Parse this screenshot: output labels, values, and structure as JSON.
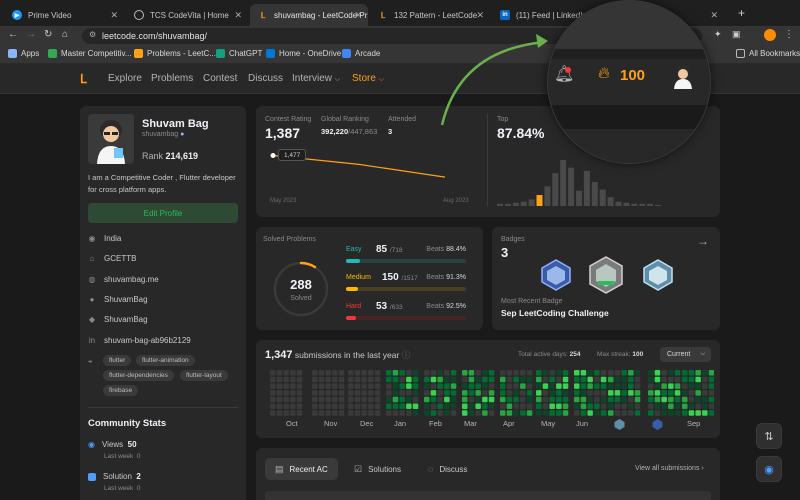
{
  "browser": {
    "tabs": [
      {
        "title": "Prime Video",
        "fav_color": "#1a98ff",
        "fav_glyph": "▶"
      },
      {
        "title": "TCS CodeVita | Home",
        "fav_color": "#ffffff",
        "fav_glyph": ""
      },
      {
        "title": "shuvambag - LeetCode Pr",
        "fav_color": "#ffa116",
        "fav_glyph": "L",
        "active": true
      },
      {
        "title": "132 Pattern - LeetCode",
        "fav_color": "#ffa116",
        "fav_glyph": "L"
      },
      {
        "title": "(11) Feed | LinkedIn",
        "fav_color": "#0a66c2",
        "fav_glyph": "in"
      }
    ],
    "url": "leetcode.com/shuvambag/",
    "bookmarks": [
      {
        "label": "Apps",
        "color": "#8ab4f8"
      },
      {
        "label": "Master Competitiv...",
        "color": "#34a853"
      },
      {
        "label": "Problems - LeetC...",
        "color": "#ffa116"
      },
      {
        "label": "ChatGPT",
        "color": "#10a37f"
      },
      {
        "label": "Home - OneDrive",
        "color": "#0078d4"
      },
      {
        "label": "Arcade",
        "color": "#4285f4"
      }
    ],
    "all_bookmarks": "All Bookmarks"
  },
  "nav": {
    "items": [
      "Explore",
      "Problems",
      "Contest",
      "Discuss",
      "Interview",
      "Store"
    ],
    "streak": "100"
  },
  "profile": {
    "name": "Shuvam Bag",
    "username": "shuvambag",
    "rank_label": "Rank",
    "rank": "214,619",
    "bio": "I am a Competitive Coder , Flutter developer for cross platform apps.",
    "edit_label": "Edit Profile",
    "location": "India",
    "school": "GCETTB",
    "website": "shuvambag.me",
    "github": "ShuvamBag",
    "twitter": "ShuvamBag",
    "linkedin": "shuvam-bag-ab96b2129",
    "skills": [
      "flutter",
      "flutter-animation",
      "flutter-dependencies",
      "flutter-layout",
      "firebase"
    ],
    "community_title": "Community Stats",
    "views_label": "Views",
    "views": "50",
    "views_sub": "Last week",
    "views_sub_val": "0",
    "solution_label": "Solution",
    "solution": "2",
    "solution_sub": "Last week",
    "solution_sub_val": "0"
  },
  "contest": {
    "rating_label": "Contest Rating",
    "rating": "1,387",
    "global_label": "Global Ranking",
    "global_rank": "392,220",
    "global_total": "/447,863",
    "attended_label": "Attended",
    "attended": "3",
    "tooltip": "1,477",
    "x_start": "May 2023",
    "x_end": "Aug 2023",
    "top_label": "Top",
    "top_value": "87.84%"
  },
  "chart_data": [
    {
      "type": "line",
      "x": [
        "May 2023",
        "",
        "Aug 2023"
      ],
      "values": [
        1477,
        1440,
        1387
      ],
      "series": [
        {
          "name": "",
          "values": [
            1477,
            1440,
            1387
          ]
        }
      ]
    },
    {
      "type": "bar",
      "values": [
        2,
        2,
        3,
        4,
        6,
        10,
        18,
        30,
        42,
        35,
        14,
        32,
        22,
        15,
        8,
        4,
        3,
        2,
        2,
        2,
        1
      ],
      "highlight_index": 5,
      "highlight_color": "#ffa116",
      "bar_color": "#4a4a4a"
    }
  ],
  "solved": {
    "title": "Solved Problems",
    "total": "288",
    "total_label": "Solved",
    "ring_fraction": 0.09,
    "ring_color": "#ffa116",
    "rows": [
      {
        "name": "Easy",
        "count": "85",
        "total": "/718",
        "beats_label": "Beats",
        "beats": "88.4%",
        "fill": 0.118,
        "color": "#1cbaba",
        "track": "#274242",
        "name_color": "#1cbaba"
      },
      {
        "name": "Medium",
        "count": "150",
        "total": "/1517",
        "beats_label": "Beats",
        "beats": "91.3%",
        "fill": 0.099,
        "color": "#ffb700",
        "track": "#4a3f20",
        "name_color": "#ffb700"
      },
      {
        "name": "Hard",
        "count": "53",
        "total": "/633",
        "beats_label": "Beats",
        "beats": "92.5%",
        "fill": 0.084,
        "color": "#f63737",
        "track": "#4a2424",
        "name_color": "#f63737"
      }
    ]
  },
  "badges": {
    "title": "Badges",
    "count": "3",
    "recent_label": "Most Recent Badge",
    "recent": "Sep LeetCoding Challenge"
  },
  "submissions": {
    "count": "1,347",
    "label": "submissions in the last year",
    "active_label": "Total active days:",
    "active": "254",
    "streak_label": "Max streak:",
    "streak": "100",
    "select": "Current",
    "months": [
      "Oct",
      "Nov",
      "Dec",
      "Jan",
      "Feb",
      "Mar",
      "Apr",
      "May",
      "Jun",
      "Sep"
    ]
  },
  "lower": {
    "tabs": [
      "Recent AC",
      "Solutions",
      "Discuss"
    ],
    "view_all": "View all submissions"
  }
}
